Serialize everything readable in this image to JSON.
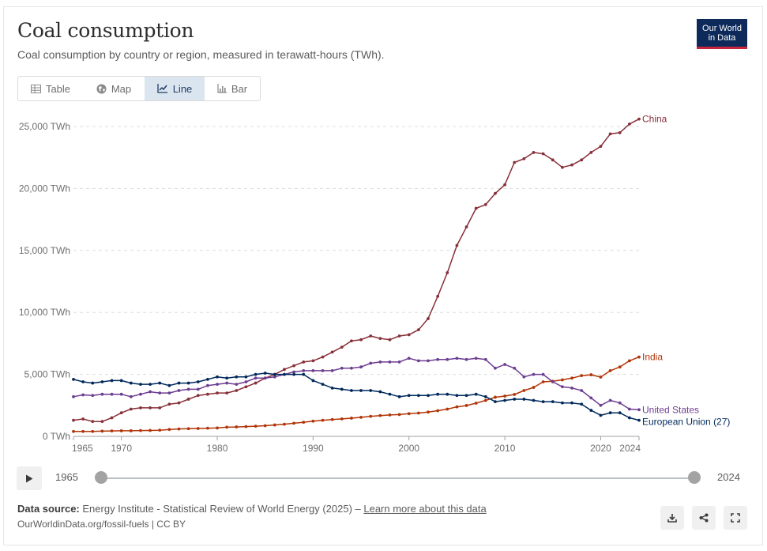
{
  "header": {
    "title": "Coal consumption",
    "subtitle": "Coal consumption by country or region, measured in terawatt-hours (TWh).",
    "logo_line1": "Our World",
    "logo_line2": "in Data"
  },
  "tabs": [
    {
      "label": "Table",
      "icon": "table-icon"
    },
    {
      "label": "Map",
      "icon": "globe-icon"
    },
    {
      "label": "Line",
      "icon": "line-chart-icon",
      "active": true
    },
    {
      "label": "Bar",
      "icon": "bar-chart-icon"
    }
  ],
  "timeline": {
    "start": "1965",
    "end": "2024"
  },
  "footer": {
    "source_label": "Data source:",
    "source_text": "Energy Institute - Statistical Review of World Energy (2025) – ",
    "link_text": "Learn more about this data",
    "url_line": "OurWorldinData.org/fossil-fuels | CC BY"
  },
  "colors": {
    "china": "#883039",
    "india": "#b13507",
    "united_states": "#6d3e91",
    "eu": "#00295b",
    "grid": "#dddddd"
  },
  "chart_data": {
    "type": "line",
    "title": "Coal consumption",
    "xlabel": "",
    "ylabel": "TWh",
    "xlim": [
      1965,
      2024
    ],
    "ylim": [
      0,
      25000
    ],
    "y_ticks": [
      0,
      5000,
      10000,
      15000,
      20000,
      25000
    ],
    "y_tick_labels": [
      "0 TWh",
      "5,000 TWh",
      "10,000 TWh",
      "15,000 TWh",
      "20,000 TWh",
      "25,000 TWh"
    ],
    "x_ticks": [
      1965,
      1970,
      1980,
      1990,
      2000,
      2010,
      2020,
      2024
    ],
    "x_tick_labels": [
      "1965",
      "1970",
      "1980",
      "1990",
      "2000",
      "2010",
      "2020",
      "2024"
    ],
    "x": [
      1965,
      1966,
      1967,
      1968,
      1969,
      1970,
      1971,
      1972,
      1973,
      1974,
      1975,
      1976,
      1977,
      1978,
      1979,
      1980,
      1981,
      1982,
      1983,
      1984,
      1985,
      1986,
      1987,
      1988,
      1989,
      1990,
      1991,
      1992,
      1993,
      1994,
      1995,
      1996,
      1997,
      1998,
      1999,
      2000,
      2001,
      2002,
      2003,
      2004,
      2005,
      2006,
      2007,
      2008,
      2009,
      2010,
      2011,
      2012,
      2013,
      2014,
      2015,
      2016,
      2017,
      2018,
      2019,
      2020,
      2021,
      2022,
      2023,
      2024
    ],
    "series": [
      {
        "name": "China",
        "color_key": "china",
        "values": [
          1300,
          1400,
          1200,
          1200,
          1500,
          1900,
          2200,
          2300,
          2300,
          2300,
          2600,
          2700,
          3000,
          3300,
          3400,
          3500,
          3500,
          3700,
          4000,
          4300,
          4700,
          5000,
          5400,
          5700,
          6000,
          6100,
          6400,
          6800,
          7200,
          7700,
          7800,
          8100,
          7900,
          7800,
          8100,
          8200,
          8600,
          9500,
          11300,
          13200,
          15400,
          16900,
          18400,
          18700,
          19600,
          20300,
          22100,
          22400,
          22900,
          22800,
          22300,
          21700,
          21900,
          22300,
          22900,
          23400,
          24400,
          24500,
          25200,
          25600
        ]
      },
      {
        "name": "India",
        "color_key": "india",
        "values": [
          400,
          400,
          400,
          420,
          440,
          450,
          450,
          470,
          480,
          500,
          560,
          600,
          620,
          640,
          660,
          680,
          740,
          760,
          790,
          820,
          860,
          920,
          980,
          1060,
          1140,
          1230,
          1300,
          1360,
          1410,
          1470,
          1540,
          1620,
          1680,
          1730,
          1760,
          1830,
          1880,
          1960,
          2070,
          2200,
          2380,
          2490,
          2680,
          2900,
          3160,
          3250,
          3380,
          3700,
          3950,
          4400,
          4450,
          4560,
          4700,
          4900,
          4970,
          4780,
          5300,
          5600,
          6100,
          6400
        ]
      },
      {
        "name": "United States",
        "color_key": "united_states",
        "values": [
          3200,
          3350,
          3300,
          3400,
          3400,
          3400,
          3200,
          3400,
          3600,
          3500,
          3500,
          3700,
          3800,
          3800,
          4100,
          4200,
          4300,
          4200,
          4400,
          4700,
          4700,
          4800,
          5000,
          5200,
          5300,
          5300,
          5300,
          5300,
          5500,
          5500,
          5600,
          5900,
          6000,
          6000,
          6000,
          6300,
          6100,
          6100,
          6200,
          6200,
          6300,
          6200,
          6300,
          6200,
          5500,
          5800,
          5500,
          4800,
          5000,
          5000,
          4400,
          4000,
          3900,
          3700,
          3100,
          2500,
          2900,
          2700,
          2200,
          2150
        ]
      },
      {
        "name": "European Union (27)",
        "color_key": "eu",
        "values": [
          4600,
          4400,
          4300,
          4400,
          4500,
          4500,
          4300,
          4200,
          4200,
          4300,
          4100,
          4300,
          4300,
          4400,
          4600,
          4800,
          4700,
          4800,
          4800,
          5000,
          5100,
          5000,
          5000,
          5000,
          5000,
          4500,
          4200,
          3900,
          3800,
          3700,
          3700,
          3700,
          3600,
          3400,
          3200,
          3300,
          3300,
          3300,
          3400,
          3400,
          3300,
          3300,
          3400,
          3200,
          2800,
          2900,
          3000,
          3000,
          2900,
          2800,
          2800,
          2700,
          2700,
          2600,
          2100,
          1700,
          1900,
          1900,
          1500,
          1300
        ]
      }
    ]
  }
}
